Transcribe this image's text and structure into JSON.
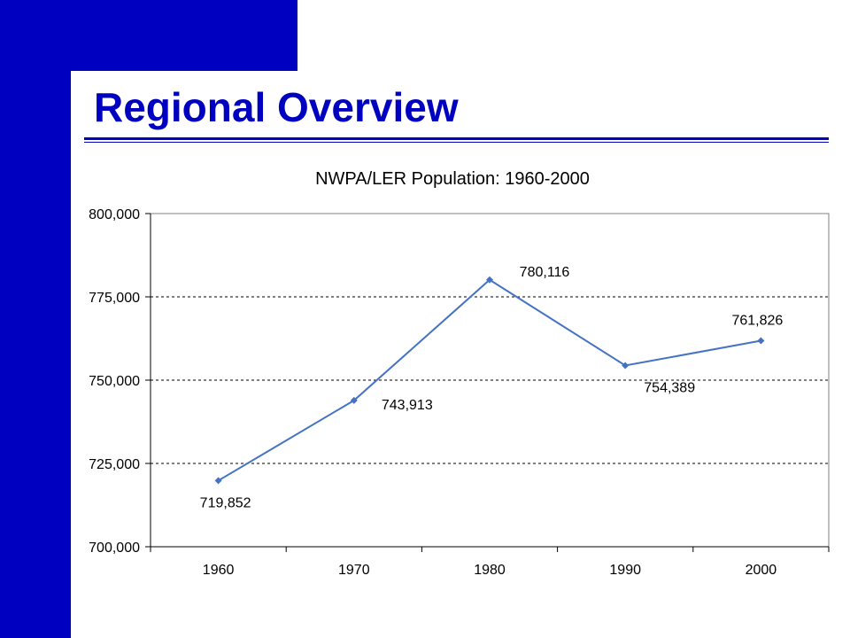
{
  "slide": {
    "title": "Regional Overview"
  },
  "colors": {
    "brand": "#0000c0",
    "series_line": "#4472c4"
  },
  "chart_data": {
    "type": "line",
    "title": "NWPA/LER Population: 1960-2000",
    "xlabel": "",
    "ylabel": "",
    "categories": [
      "1960",
      "1970",
      "1980",
      "1990",
      "2000"
    ],
    "series": [
      {
        "values": [
          719852,
          743913,
          780116,
          754389,
          761826
        ]
      }
    ],
    "data_labels": [
      "719,852",
      "743,913",
      "780,116",
      "754,389",
      "761,826"
    ],
    "y_ticks": [
      "700,000",
      "725,000",
      "750,000",
      "775,000",
      "800,000"
    ],
    "ylim": [
      700000,
      800000
    ],
    "grid": "horizontal dashed",
    "legend": "none"
  }
}
